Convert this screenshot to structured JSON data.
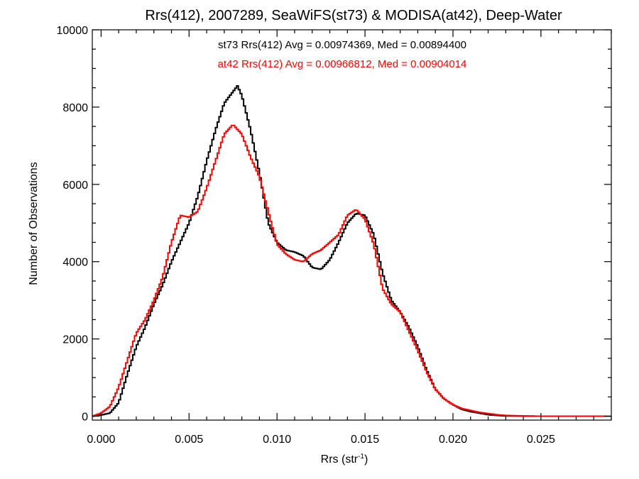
{
  "chart_data": {
    "type": "line",
    "title": "Rrs(412), 2007289, SeaWiFS(st73) & MODISA(at42), Deep-Water",
    "xlabel": "Rrs (str",
    "xlabel_sup": "-1",
    "xlabel_close": ")",
    "ylabel": "Number of Observations",
    "xlim": [
      -0.0005,
      0.029
    ],
    "ylim": [
      -100,
      10000
    ],
    "xticks": [
      0.0,
      0.005,
      0.01,
      0.015,
      0.02,
      0.025
    ],
    "xtick_labels": [
      "0.000",
      "0.005",
      "0.010",
      "0.015",
      "0.020",
      "0.025"
    ],
    "yticks": [
      0,
      2000,
      4000,
      6000,
      8000,
      10000
    ],
    "ytick_labels": [
      "0",
      "2000",
      "4000",
      "6000",
      "8000",
      "10000"
    ],
    "step": "histogram",
    "annotations": [
      {
        "text": "st73 Rrs(412) Avg = 0.00974369, Med = 0.00894400",
        "color": "#000000"
      },
      {
        "text": "at42 Rrs(412) Avg = 0.00966812, Med = 0.00904014",
        "color": "#ff0000"
      }
    ],
    "series": [
      {
        "color": "#000000",
        "points": [
          [
            -0.0005,
            0
          ],
          [
            0.0,
            30
          ],
          [
            0.0005,
            80
          ],
          [
            0.001,
            350
          ],
          [
            0.0015,
            1100
          ],
          [
            0.002,
            1800
          ],
          [
            0.0025,
            2300
          ],
          [
            0.003,
            2900
          ],
          [
            0.0035,
            3400
          ],
          [
            0.004,
            4000
          ],
          [
            0.0045,
            4500
          ],
          [
            0.005,
            5000
          ],
          [
            0.0055,
            5700
          ],
          [
            0.006,
            6600
          ],
          [
            0.0065,
            7400
          ],
          [
            0.007,
            8100
          ],
          [
            0.0075,
            8400
          ],
          [
            0.00775,
            8550
          ],
          [
            0.008,
            8300
          ],
          [
            0.0085,
            7400
          ],
          [
            0.009,
            6300
          ],
          [
            0.0095,
            5000
          ],
          [
            0.01,
            4500
          ],
          [
            0.0105,
            4300
          ],
          [
            0.011,
            4250
          ],
          [
            0.0115,
            4150
          ],
          [
            0.012,
            3850
          ],
          [
            0.0125,
            3800
          ],
          [
            0.013,
            4050
          ],
          [
            0.0135,
            4500
          ],
          [
            0.014,
            5000
          ],
          [
            0.0145,
            5250
          ],
          [
            0.015,
            5200
          ],
          [
            0.0155,
            4700
          ],
          [
            0.016,
            3700
          ],
          [
            0.0165,
            3000
          ],
          [
            0.017,
            2700
          ],
          [
            0.0175,
            2300
          ],
          [
            0.018,
            1800
          ],
          [
            0.0185,
            1200
          ],
          [
            0.019,
            700
          ],
          [
            0.0195,
            450
          ],
          [
            0.02,
            300
          ],
          [
            0.0205,
            180
          ],
          [
            0.021,
            120
          ],
          [
            0.0215,
            80
          ],
          [
            0.022,
            40
          ],
          [
            0.0225,
            20
          ],
          [
            0.023,
            10
          ],
          [
            0.024,
            5
          ],
          [
            0.025,
            0
          ],
          [
            0.029,
            0
          ]
        ]
      },
      {
        "color": "#ff0000",
        "points": [
          [
            -0.0005,
            0
          ],
          [
            0.0,
            80
          ],
          [
            0.0005,
            250
          ],
          [
            0.001,
            750
          ],
          [
            0.0015,
            1450
          ],
          [
            0.002,
            2150
          ],
          [
            0.0025,
            2500
          ],
          [
            0.003,
            3000
          ],
          [
            0.0035,
            3600
          ],
          [
            0.004,
            4500
          ],
          [
            0.0045,
            5200
          ],
          [
            0.005,
            5150
          ],
          [
            0.0055,
            5300
          ],
          [
            0.006,
            5900
          ],
          [
            0.0065,
            6600
          ],
          [
            0.007,
            7300
          ],
          [
            0.0075,
            7550
          ],
          [
            0.008,
            7300
          ],
          [
            0.0085,
            6700
          ],
          [
            0.009,
            6200
          ],
          [
            0.0095,
            5300
          ],
          [
            0.01,
            4450
          ],
          [
            0.0105,
            4200
          ],
          [
            0.011,
            4050
          ],
          [
            0.0115,
            4000
          ],
          [
            0.012,
            4200
          ],
          [
            0.0125,
            4300
          ],
          [
            0.013,
            4500
          ],
          [
            0.0135,
            4700
          ],
          [
            0.014,
            5200
          ],
          [
            0.0145,
            5350
          ],
          [
            0.015,
            5100
          ],
          [
            0.0155,
            4450
          ],
          [
            0.016,
            3300
          ],
          [
            0.0165,
            2900
          ],
          [
            0.017,
            2700
          ],
          [
            0.0175,
            2200
          ],
          [
            0.018,
            1700
          ],
          [
            0.0185,
            1150
          ],
          [
            0.019,
            700
          ],
          [
            0.0195,
            450
          ],
          [
            0.02,
            300
          ],
          [
            0.0205,
            200
          ],
          [
            0.021,
            150
          ],
          [
            0.0215,
            100
          ],
          [
            0.022,
            70
          ],
          [
            0.0225,
            40
          ],
          [
            0.023,
            20
          ],
          [
            0.024,
            10
          ],
          [
            0.025,
            0
          ],
          [
            0.029,
            0
          ]
        ]
      }
    ]
  }
}
